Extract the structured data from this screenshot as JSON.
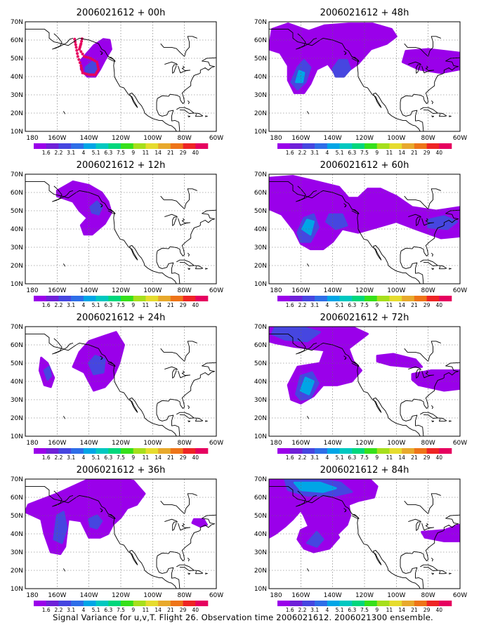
{
  "figure": {
    "caption": "Signal Variance for u,v,T. Flight 26. Observation time 2006021612. 2006021300 ensemble."
  },
  "map": {
    "lon_labels": [
      "180",
      "160W",
      "140W",
      "120W",
      "100W",
      "80W",
      "60W"
    ],
    "lat_labels": [
      "10N",
      "20N",
      "30N",
      "40N",
      "50N",
      "60N",
      "70N"
    ],
    "lon_range": [
      -180,
      -60
    ],
    "lat_range": [
      10,
      70
    ],
    "grid": true
  },
  "colorbar": {
    "labels": [
      "1.6",
      "2.2",
      "3.1",
      "4",
      "5.1",
      "6.3",
      "7.5",
      "9",
      "11",
      "14",
      "21",
      "29",
      "40"
    ],
    "colors": [
      "#9a00ea",
      "#6f20d8",
      "#4646e0",
      "#2e6ee8",
      "#00a5e6",
      "#00c8c0",
      "#00d77c",
      "#36e01a",
      "#a6df1c",
      "#e6dc2e",
      "#e8a92c",
      "#ee7418",
      "#ee2424",
      "#e6005f"
    ]
  },
  "panels": [
    {
      "title": "2006021612 + 00h"
    },
    {
      "title": "2006021612 + 48h"
    },
    {
      "title": "2006021612 + 12h"
    },
    {
      "title": "2006021612 + 60h"
    },
    {
      "title": "2006021612 + 24h"
    },
    {
      "title": "2006021612 + 72h"
    },
    {
      "title": "2006021612 + 36h"
    },
    {
      "title": "2006021612 + 84h"
    }
  ]
}
